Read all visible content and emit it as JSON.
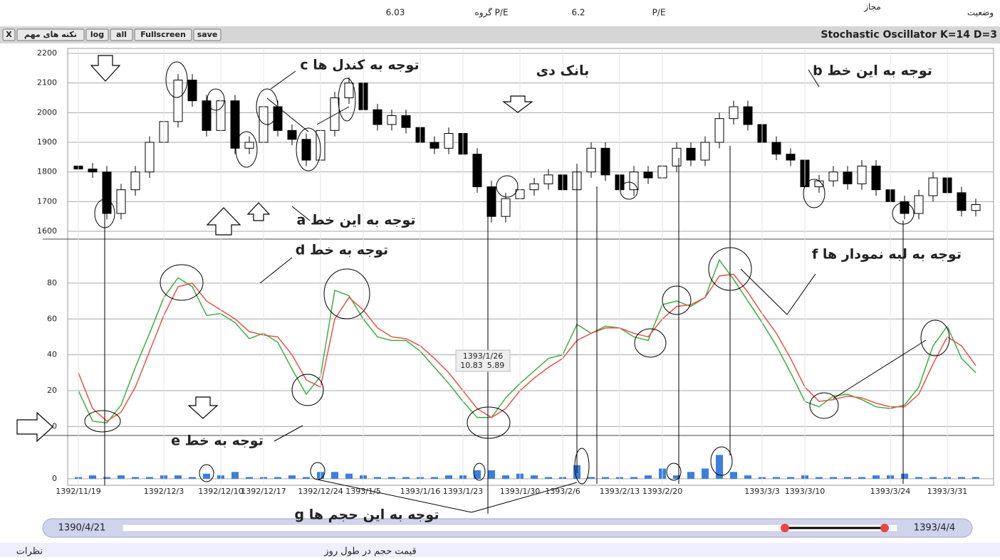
{
  "header": {
    "status_label": "وضعیت",
    "status": "مجاز",
    "pe_label": "P/E",
    "pe": 6.2,
    "group_pe_label": "P/E گروه",
    "group_pe": 6.03
  },
  "toolbar": {
    "buttons": [
      "X",
      "نکته های مهم",
      "log",
      "all",
      "Fullscreen",
      "save"
    ]
  },
  "slider": {
    "start": "1390/4/21",
    "end": "1393/4/4"
  },
  "footer": {
    "left": "نظرات",
    "center": "قیمت حجم در طول روز"
  },
  "annotations": [
    "توجه به کندل ها c",
    "توجه به این خط b",
    "توجه به این خط a",
    "توجه به خط d",
    "توجه به لبه نمودار ها f",
    "توجه به خط e",
    "توجه به این حجم ها g"
  ],
  "tooltip": {
    "date": "1393/1/26",
    "k": 10.83,
    "d": 5.89
  },
  "chart_data": [
    {
      "type": "candlestick",
      "title": "بانک دی",
      "open": [
        1820,
        1810,
        1800,
        1660,
        1740,
        1800,
        1900,
        1970,
        2110,
        2040,
        1940,
        2040,
        1880,
        1900,
        2020,
        1940,
        1910,
        1840,
        1940,
        2050,
        2100,
        2010,
        1960,
        1990,
        1950,
        1900,
        1880,
        1930,
        1860,
        1750,
        1650,
        1710,
        1740,
        1760,
        1790,
        1740,
        1800,
        1880,
        1790,
        1740,
        1800,
        1780,
        1820,
        1880,
        1840,
        1900,
        1980,
        2020,
        1960,
        1900,
        1860,
        1840,
        1750,
        1770,
        1800,
        1760,
        1820,
        1740,
        1700,
        1660,
        1720,
        1780,
        1730,
        1670
      ],
      "high": [
        1840,
        1830,
        1820,
        1760,
        1820,
        1920,
        1990,
        2130,
        2130,
        2060,
        2060,
        2060,
        1920,
        2040,
        2040,
        1960,
        1930,
        1960,
        2070,
        2120,
        2120,
        2030,
        2010,
        2010,
        1970,
        1920,
        1950,
        1950,
        1880,
        1770,
        1730,
        1760,
        1780,
        1810,
        1810,
        1820,
        1900,
        1900,
        1810,
        1820,
        1820,
        1840,
        1900,
        1900,
        1920,
        2000,
        2040,
        2040,
        1980,
        1920,
        1880,
        1860,
        1790,
        1820,
        1820,
        1840,
        1840,
        1760,
        1720,
        1740,
        1800,
        1800,
        1750,
        1710
      ],
      "low": [
        1790,
        1780,
        1640,
        1640,
        1720,
        1780,
        1880,
        1950,
        2020,
        1920,
        1920,
        1860,
        1860,
        1880,
        1920,
        1890,
        1820,
        1820,
        1920,
        2030,
        1990,
        1940,
        1940,
        1930,
        1880,
        1860,
        1860,
        1840,
        1730,
        1630,
        1630,
        1690,
        1720,
        1740,
        1720,
        1720,
        1780,
        1770,
        1720,
        1720,
        1760,
        1760,
        1800,
        1820,
        1820,
        1880,
        1960,
        1940,
        1880,
        1840,
        1820,
        1730,
        1730,
        1750,
        1740,
        1740,
        1720,
        1680,
        1640,
        1640,
        1700,
        1710,
        1650,
        1650
      ],
      "close": [
        1810,
        1800,
        1660,
        1740,
        1800,
        1900,
        1970,
        2110,
        2040,
        1940,
        2040,
        1880,
        1900,
        2020,
        1940,
        1910,
        1840,
        1940,
        2050,
        2100,
        2010,
        1960,
        1990,
        1950,
        1900,
        1880,
        1930,
        1860,
        1750,
        1650,
        1710,
        1740,
        1760,
        1790,
        1740,
        1800,
        1880,
        1790,
        1740,
        1800,
        1780,
        1820,
        1880,
        1840,
        1900,
        1980,
        2020,
        1960,
        1900,
        1860,
        1840,
        1750,
        1770,
        1800,
        1760,
        1820,
        1740,
        1700,
        1660,
        1720,
        1780,
        1730,
        1670,
        1690
      ],
      "ylim": [
        1588,
        2200
      ],
      "yticks": [
        1600,
        1700,
        1800,
        1900,
        2000,
        2100,
        2200
      ],
      "grid": true
    },
    {
      "type": "line",
      "title": "Stochastic Oscillator K=14 D=3",
      "series": [
        {
          "name": "K",
          "color": "#3cb043",
          "values": [
            20,
            3,
            2,
            12,
            33,
            52,
            72,
            83,
            78,
            62,
            63,
            58,
            49,
            52,
            47,
            32,
            18,
            28,
            76,
            73,
            60,
            50,
            48,
            48,
            42,
            33,
            24,
            14,
            5,
            5,
            16,
            24,
            31,
            38,
            40,
            57,
            52,
            56,
            55,
            50,
            48,
            68,
            70,
            67,
            72,
            93,
            82,
            70,
            58,
            45,
            30,
            14,
            11,
            17,
            18,
            15,
            11,
            10,
            12,
            22,
            45,
            56,
            38,
            30
          ]
        },
        {
          "name": "D",
          "color": "#e8534a",
          "values": [
            30,
            10,
            3,
            8,
            22,
            42,
            62,
            78,
            80,
            70,
            65,
            60,
            53,
            51,
            50,
            40,
            26,
            22,
            60,
            72,
            65,
            55,
            50,
            49,
            45,
            38,
            30,
            20,
            10,
            5,
            10,
            20,
            27,
            33,
            38,
            48,
            52,
            55,
            55,
            52,
            50,
            60,
            67,
            68,
            72,
            84,
            85,
            75,
            63,
            52,
            38,
            22,
            14,
            15,
            17,
            16,
            13,
            11,
            11,
            18,
            35,
            50,
            45,
            34
          ]
        }
      ],
      "ylim": [
        -5,
        101
      ],
      "yticks": [
        0,
        20,
        40,
        60,
        80
      ],
      "grid": true
    },
    {
      "type": "bar",
      "color": "#3a7fe0",
      "categories": [
        "1392/11/19",
        null,
        null,
        null,
        null,
        null,
        "1392/12/3",
        null,
        null,
        null,
        "1392/12/10",
        null,
        null,
        "1392/12/17",
        null,
        null,
        null,
        "1392/12/24",
        null,
        null,
        "1393/1/5",
        null,
        null,
        null,
        "1393/1/16",
        null,
        null,
        "1393/1/23",
        null,
        null,
        null,
        "1393/1/30",
        null,
        null,
        "1393/2/6",
        null,
        null,
        null,
        "1393/2/13",
        null,
        null,
        "1393/2/20",
        null,
        null,
        null,
        null,
        null,
        null,
        "1393/3/3",
        null,
        null,
        "1393/3/10",
        null,
        null,
        null,
        null,
        null,
        "1393/3/24",
        null,
        null,
        null,
        "1393/3/31",
        null,
        null
      ],
      "values": [
        1,
        2,
        1,
        2,
        1,
        1,
        2,
        2,
        1,
        3,
        2,
        4,
        1,
        1,
        1,
        2,
        1,
        4,
        4,
        3,
        2,
        1,
        1,
        1,
        1,
        1,
        2,
        2,
        5,
        5,
        2,
        3,
        2,
        1,
        1,
        8,
        1,
        1,
        1,
        1,
        2,
        6,
        2,
        4,
        6,
        14,
        4,
        2,
        1,
        1,
        1,
        2,
        1,
        1,
        1,
        1,
        2,
        2,
        3,
        1,
        1,
        1,
        1,
        1
      ],
      "ylim": [
        -3,
        20
      ],
      "yticks": [
        0
      ],
      "grid": true
    }
  ]
}
